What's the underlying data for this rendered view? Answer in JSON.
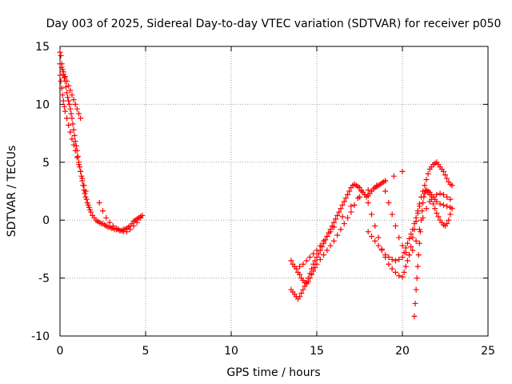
{
  "chart_data": {
    "type": "scatter",
    "title": "Day 003 of 2025, Sidereal Day-to-day VTEC variation (SDTVAR) for receiver p050",
    "xlabel": "GPS time / hours",
    "ylabel": "SDTVAR / TECUs",
    "xlim": [
      0,
      25
    ],
    "ylim": [
      -10,
      15
    ],
    "grid": true,
    "x_ticks": [
      0,
      5,
      10,
      15,
      20,
      25
    ],
    "y_ticks": [
      -10,
      -5,
      0,
      5,
      10,
      15
    ],
    "marker": "+",
    "series": [
      {
        "name": "SDTVAR",
        "color": "#ff0000",
        "x": [
          0.0,
          0.05,
          0.1,
          0.15,
          0.2,
          0.25,
          0.3,
          0.35,
          0.4,
          0.45,
          0.5,
          0.55,
          0.6,
          0.65,
          0.7,
          0.75,
          0.8,
          0.85,
          0.9,
          0.95,
          1.0,
          1.05,
          1.1,
          1.15,
          1.2,
          1.25,
          1.3,
          1.35,
          1.4,
          1.45,
          1.5,
          1.55,
          1.6,
          1.65,
          1.7,
          1.75,
          1.8,
          1.9,
          2.0,
          2.1,
          2.2,
          2.3,
          2.4,
          2.5,
          2.6,
          2.7,
          2.8,
          2.9,
          3.0,
          3.1,
          3.2,
          3.3,
          3.4,
          3.5,
          3.6,
          3.7,
          3.8,
          3.9,
          4.0,
          4.1,
          4.2,
          4.3,
          4.4,
          4.5,
          4.6,
          4.7,
          4.8,
          0.0,
          0.05,
          0.1,
          0.15,
          0.2,
          0.25,
          0.3,
          0.4,
          0.5,
          0.6,
          0.7,
          0.8,
          0.9,
          1.0,
          1.1,
          1.2,
          1.3,
          1.4,
          1.5,
          0.0,
          0.1,
          0.2,
          0.3,
          0.4,
          0.5,
          0.6,
          0.7,
          0.8,
          0.9,
          1.0,
          1.1,
          1.2,
          2.3,
          2.5,
          2.7,
          2.9,
          3.1,
          3.3,
          3.5,
          3.7,
          3.9,
          4.1,
          4.3,
          4.5,
          4.7,
          13.5,
          13.6,
          13.7,
          13.8,
          13.9,
          14.0,
          14.1,
          14.2,
          14.3,
          14.4,
          14.5,
          14.6,
          14.7,
          14.8,
          14.9,
          15.0,
          15.1,
          15.2,
          15.3,
          15.4,
          15.5,
          15.6,
          15.7,
          15.8,
          15.9,
          16.0,
          16.1,
          16.2,
          16.3,
          16.4,
          16.5,
          16.6,
          16.7,
          16.8,
          16.9,
          17.0,
          17.1,
          17.2,
          17.3,
          17.4,
          17.5,
          17.6,
          17.7,
          17.8,
          17.9,
          18.0,
          18.1,
          18.2,
          18.3,
          18.4,
          18.5,
          18.6,
          18.7,
          18.8,
          18.9,
          19.0,
          13.5,
          13.6,
          13.7,
          13.8,
          13.9,
          14.0,
          14.1,
          14.2,
          14.3,
          14.4,
          14.5,
          14.6,
          14.7,
          14.8,
          14.9,
          15.0,
          15.2,
          15.4,
          15.6,
          15.8,
          16.0,
          16.2,
          16.4,
          16.6,
          16.8,
          17.0,
          17.2,
          17.4,
          17.6,
          17.8,
          18.0,
          18.2,
          18.4,
          18.6,
          18.8,
          19.0,
          19.2,
          19.4,
          19.6,
          19.8,
          20.0,
          20.1,
          20.2,
          20.3,
          20.4,
          20.5,
          20.6,
          20.7,
          20.8,
          20.9,
          21.0,
          14.0,
          14.2,
          14.4,
          14.6,
          14.8,
          15.0,
          15.2,
          15.4,
          15.6,
          15.8,
          16.0,
          16.5,
          17.0,
          17.5,
          18.0,
          18.5,
          19.0,
          19.5,
          20.0,
          18.0,
          18.2,
          18.4,
          18.6,
          18.8,
          19.0,
          19.2,
          19.4,
          19.6,
          19.8,
          20.0,
          20.1,
          20.2,
          20.3,
          20.4,
          20.5,
          20.6,
          20.7,
          20.8,
          20.9,
          21.0,
          21.1,
          21.2,
          21.3,
          21.4,
          21.5,
          21.6,
          21.7,
          21.8,
          21.9,
          22.0,
          22.1,
          22.2,
          22.3,
          22.4,
          22.5,
          22.6,
          22.7,
          22.8,
          22.9,
          19.0,
          19.2,
          19.4,
          19.6,
          19.8,
          20.0,
          20.2,
          20.4,
          20.6,
          20.8,
          21.0,
          21.2,
          21.4,
          21.6,
          21.8,
          22.0,
          22.2,
          22.4,
          22.6,
          22.8,
          20.7,
          20.75,
          20.8,
          20.85,
          20.9,
          20.95,
          21.0,
          21.05,
          21.1,
          21.15,
          21.2,
          21.25,
          21.3,
          21.35,
          21.4,
          21.5,
          21.6,
          21.7,
          21.8,
          21.9,
          22.0,
          22.2,
          22.4,
          22.6,
          22.8,
          21.5,
          21.6,
          21.7,
          21.8,
          21.9,
          22.0,
          22.1,
          22.2,
          22.3,
          22.4,
          22.5,
          22.6,
          22.7,
          22.8,
          22.9
        ],
        "y": [
          14.5,
          14.2,
          13.5,
          13.0,
          12.6,
          12.3,
          12.0,
          11.5,
          11.0,
          10.6,
          10.3,
          10.0,
          9.6,
          9.2,
          8.8,
          8.3,
          7.8,
          7.3,
          6.8,
          6.4,
          6.0,
          5.5,
          5.0,
          4.6,
          4.2,
          3.8,
          3.4,
          3.0,
          2.6,
          2.3,
          2.0,
          1.8,
          1.5,
          1.3,
          1.1,
          0.9,
          0.7,
          0.4,
          0.2,
          0.0,
          -0.1,
          -0.2,
          -0.3,
          -0.3,
          -0.4,
          -0.5,
          -0.6,
          -0.6,
          -0.7,
          -0.7,
          -0.8,
          -0.8,
          -0.8,
          -0.9,
          -0.9,
          -0.8,
          -0.8,
          -0.7,
          -0.6,
          -0.5,
          -0.3,
          -0.1,
          0.0,
          0.1,
          0.2,
          0.3,
          0.4,
          12.5,
          12.0,
          11.4,
          10.8,
          10.3,
          9.8,
          9.4,
          8.8,
          8.2,
          7.6,
          7.0,
          6.5,
          6.0,
          5.4,
          4.8,
          4.2,
          3.6,
          3.0,
          2.5,
          13.5,
          13.2,
          12.8,
          12.4,
          12.0,
          11.6,
          11.2,
          10.8,
          10.4,
          10.0,
          9.6,
          9.2,
          8.8,
          1.5,
          0.8,
          0.2,
          -0.2,
          -0.5,
          -0.7,
          -0.9,
          -1.0,
          -1.0,
          -0.8,
          -0.5,
          -0.2,
          0.2,
          -6.0,
          -6.2,
          -6.4,
          -6.6,
          -6.8,
          -6.6,
          -6.3,
          -6.0,
          -5.7,
          -5.4,
          -5.0,
          -4.6,
          -4.2,
          -3.8,
          -3.5,
          -3.2,
          -2.9,
          -2.6,
          -2.3,
          -2.0,
          -1.7,
          -1.4,
          -1.1,
          -0.8,
          -0.5,
          -0.2,
          0.1,
          0.4,
          0.7,
          1.0,
          1.3,
          1.6,
          1.9,
          2.2,
          2.5,
          2.8,
          3.0,
          3.1,
          3.0,
          2.9,
          2.8,
          2.6,
          2.4,
          2.2,
          2.0,
          2.1,
          2.3,
          2.5,
          2.7,
          2.8,
          2.9,
          3.0,
          3.1,
          3.2,
          3.3,
          3.4,
          -3.5,
          -3.8,
          -4.0,
          -4.2,
          -4.5,
          -4.7,
          -5.0,
          -5.2,
          -5.4,
          -5.5,
          -5.3,
          -5.0,
          -4.7,
          -4.4,
          -4.1,
          -3.8,
          -3.4,
          -3.0,
          -2.6,
          -2.2,
          -1.8,
          -1.3,
          -0.8,
          -0.3,
          0.2,
          0.7,
          1.3,
          1.9,
          2.5,
          2.2,
          1.5,
          0.5,
          -0.5,
          -1.5,
          -2.5,
          -3.2,
          -3.8,
          -4.2,
          -4.5,
          -4.8,
          -4.9,
          -4.5,
          -4.0,
          -3.5,
          -3.0,
          -2.3,
          -1.5,
          -0.8,
          -0.1,
          0.6,
          1.2,
          -4.0,
          -3.8,
          -3.5,
          -3.2,
          -2.9,
          -2.6,
          -2.2,
          -1.8,
          -1.4,
          -1.0,
          -0.6,
          0.3,
          1.2,
          2.0,
          2.6,
          3.0,
          3.4,
          3.8,
          4.2,
          -1.0,
          -1.4,
          -1.8,
          -2.2,
          -2.6,
          -3.0,
          -3.2,
          -3.4,
          -3.5,
          -3.4,
          -3.2,
          -2.8,
          -2.4,
          -2.0,
          -1.6,
          -1.2,
          -0.8,
          -0.3,
          0.2,
          0.8,
          1.4,
          2.0,
          2.5,
          3.0,
          3.5,
          4.0,
          4.4,
          4.6,
          4.8,
          4.9,
          5.0,
          4.8,
          4.6,
          4.4,
          4.2,
          3.9,
          3.6,
          3.3,
          3.1,
          3.0,
          2.5,
          1.5,
          0.5,
          -0.5,
          -1.5,
          -2.2,
          -2.8,
          -3.0,
          -2.6,
          -1.8,
          -0.8,
          0.2,
          1.0,
          1.6,
          2.0,
          2.2,
          2.3,
          2.2,
          2.0,
          1.8,
          -8.3,
          -7.2,
          -6.0,
          -5.0,
          -4.0,
          -3.0,
          -2.0,
          -1.0,
          0.0,
          0.8,
          1.5,
          2.0,
          2.3,
          2.5,
          2.6,
          2.5,
          2.4,
          2.2,
          2.0,
          1.8,
          1.6,
          1.4,
          1.3,
          1.2,
          1.1,
          2.5,
          2.2,
          1.8,
          1.4,
          1.0,
          0.6,
          0.3,
          0.0,
          -0.2,
          -0.4,
          -0.5,
          -0.3,
          0.0,
          0.5,
          1.0
        ]
      }
    ]
  }
}
